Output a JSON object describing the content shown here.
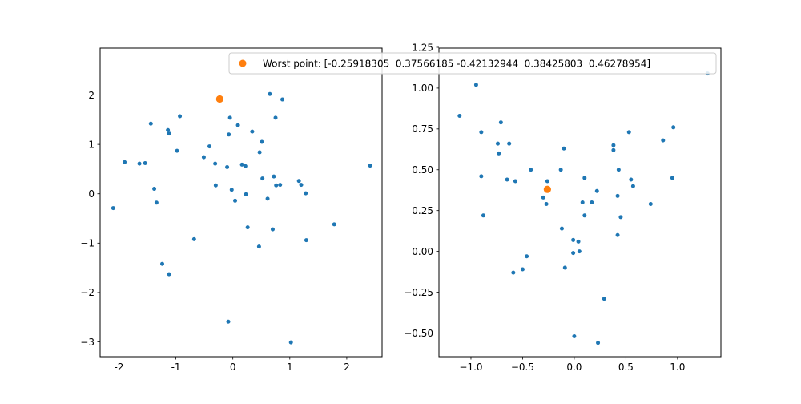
{
  "chart_data": [
    {
      "type": "scatter",
      "xlim": [
        -2.33,
        2.62
      ],
      "ylim": [
        -3.3,
        2.95
      ],
      "xticks": [
        "-2",
        "-1",
        "0",
        "1",
        "2"
      ],
      "xtick_values": [
        -2,
        -1,
        0,
        1,
        2
      ],
      "yticks": [
        "−3",
        "−2",
        "−1",
        "0",
        "1",
        "2"
      ],
      "ytick_values": [
        -3,
        -2,
        -1,
        0,
        1,
        2
      ],
      "series": [
        {
          "color": "#1f77b4",
          "points": [
            [
              -2.1,
              -0.29
            ],
            [
              -1.9,
              0.64
            ],
            [
              -1.64,
              0.61
            ],
            [
              -1.54,
              0.62
            ],
            [
              -1.44,
              1.42
            ],
            [
              -1.38,
              0.1
            ],
            [
              -1.34,
              -0.18
            ],
            [
              -1.24,
              -1.42
            ],
            [
              -1.14,
              1.29
            ],
            [
              -1.12,
              1.22
            ],
            [
              -1.12,
              -1.63
            ],
            [
              -0.98,
              0.87
            ],
            [
              -0.93,
              1.57
            ],
            [
              -0.68,
              -0.92
            ],
            [
              -0.51,
              0.74
            ],
            [
              -0.41,
              0.96
            ],
            [
              -0.31,
              0.61
            ],
            [
              -0.3,
              0.17
            ],
            [
              -0.1,
              0.54
            ],
            [
              -0.07,
              1.2
            ],
            [
              -0.05,
              1.54
            ],
            [
              -0.02,
              0.08
            ],
            [
              0.04,
              -0.14
            ],
            [
              0.09,
              1.39
            ],
            [
              0.16,
              0.59
            ],
            [
              0.22,
              0.56
            ],
            [
              0.23,
              -0.01
            ],
            [
              0.26,
              -0.68
            ],
            [
              0.34,
              1.26
            ],
            [
              0.46,
              -1.07
            ],
            [
              0.47,
              0.84
            ],
            [
              0.51,
              1.05
            ],
            [
              0.52,
              0.31
            ],
            [
              0.61,
              -0.1
            ],
            [
              0.65,
              2.02
            ],
            [
              0.7,
              -0.72
            ],
            [
              0.72,
              0.35
            ],
            [
              0.75,
              1.54
            ],
            [
              0.76,
              0.17
            ],
            [
              0.83,
              0.18
            ],
            [
              0.87,
              1.91
            ],
            [
              1.16,
              0.26
            ],
            [
              1.2,
              0.18
            ],
            [
              1.28,
              0.01
            ],
            [
              1.29,
              -0.94
            ],
            [
              1.78,
              -0.62
            ],
            [
              2.41,
              0.57
            ],
            [
              -0.08,
              -2.59
            ],
            [
              1.02,
              -3.01
            ]
          ]
        },
        {
          "color": "#ff7f0e",
          "points": [
            [
              -0.23,
              1.92
            ]
          ]
        }
      ]
    },
    {
      "type": "scatter",
      "xlim": [
        -1.31,
        1.42
      ],
      "ylim": [
        -0.645,
        1.245
      ],
      "xticks": [
        "−1.0",
        "−0.5",
        "0.0",
        "0.5",
        "1.0"
      ],
      "xtick_values": [
        -1.0,
        -0.5,
        0.0,
        0.5,
        1.0
      ],
      "yticks": [
        "−0.50",
        "−0.25",
        "0.00",
        "0.25",
        "0.50",
        "0.75",
        "1.00",
        "1.25"
      ],
      "ytick_values": [
        -0.5,
        -0.25,
        0.0,
        0.25,
        0.5,
        0.75,
        1.0,
        1.25
      ],
      "series": [
        {
          "color": "#1f77b4",
          "points": [
            [
              -1.11,
              0.83
            ],
            [
              -0.95,
              1.02
            ],
            [
              -0.9,
              0.73
            ],
            [
              -0.9,
              0.46
            ],
            [
              -0.88,
              0.22
            ],
            [
              -0.74,
              0.66
            ],
            [
              -0.73,
              0.6
            ],
            [
              -0.71,
              0.79
            ],
            [
              -0.65,
              0.44
            ],
            [
              -0.63,
              0.66
            ],
            [
              -0.57,
              0.43
            ],
            [
              -0.59,
              -0.13
            ],
            [
              -0.5,
              -0.11
            ],
            [
              -0.46,
              -0.03
            ],
            [
              -0.42,
              0.5
            ],
            [
              -0.3,
              0.33
            ],
            [
              -0.27,
              0.29
            ],
            [
              -0.26,
              0.43
            ],
            [
              -0.13,
              0.5
            ],
            [
              -0.12,
              0.14
            ],
            [
              -0.1,
              0.63
            ],
            [
              -0.09,
              -0.1
            ],
            [
              -0.01,
              0.07
            ],
            [
              -0.01,
              -0.01
            ],
            [
              0.04,
              0.06
            ],
            [
              0.05,
              0.0
            ],
            [
              0.08,
              0.3
            ],
            [
              0.1,
              0.45
            ],
            [
              0.1,
              0.22
            ],
            [
              0.17,
              0.3
            ],
            [
              0.22,
              0.37
            ],
            [
              0.29,
              -0.29
            ],
            [
              0.38,
              0.65
            ],
            [
              0.38,
              0.62
            ],
            [
              0.42,
              0.34
            ],
            [
              0.43,
              0.5
            ],
            [
              0.42,
              0.1
            ],
            [
              0.45,
              0.21
            ],
            [
              0.53,
              0.73
            ],
            [
              0.55,
              0.44
            ],
            [
              0.57,
              0.4
            ],
            [
              0.74,
              0.29
            ],
            [
              0.86,
              0.68
            ],
            [
              0.95,
              0.45
            ],
            [
              0.96,
              0.76
            ],
            [
              1.29,
              1.09
            ],
            [
              0.0,
              -0.52
            ],
            [
              0.23,
              -0.56
            ]
          ]
        },
        {
          "color": "#ff7f0e",
          "points": [
            [
              -0.26,
              0.38
            ]
          ]
        }
      ]
    }
  ],
  "legend": {
    "label": "Worst point: [-0.25918305  0.37566185 -0.42132944  0.38425803  0.46278954]",
    "marker_color": "#ff7f0e"
  }
}
